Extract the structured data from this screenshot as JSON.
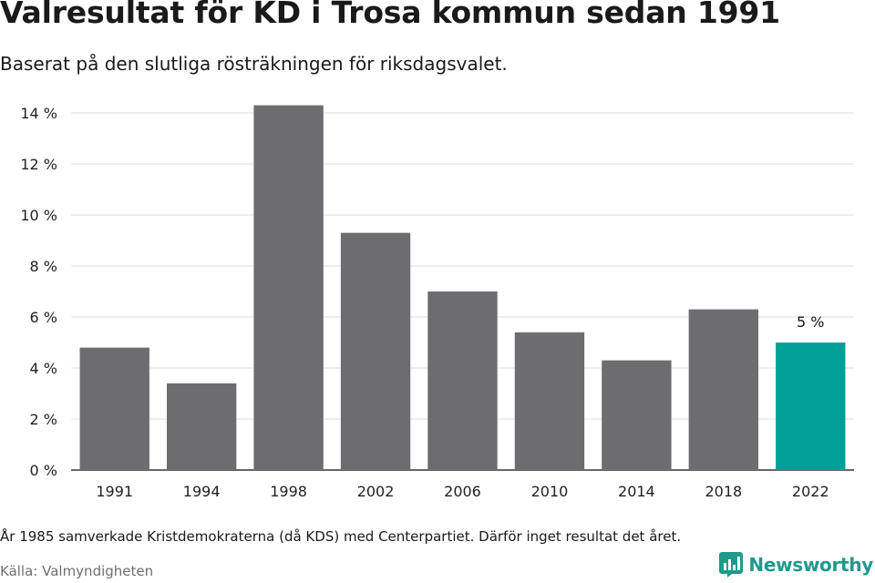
{
  "title": "Valresultat för KD i Trosa kommun sedan 1991",
  "subtitle": "Baserat på den slutliga rösträkningen för riksdagsvalet.",
  "note": "År 1985 samverkade Kristdemokraterna (då KDS) med Centerpartiet. Därför inget resultat det året.",
  "source": "Källa: Valmyndigheten",
  "brand": {
    "name": "Newsworthy",
    "icon": "newsworthy-logo-icon"
  },
  "colors": {
    "bar": "#6d6c71",
    "highlight": "#00a096",
    "grid": "#dddddd",
    "axis": "#333333"
  },
  "chart_data": {
    "type": "bar",
    "categories": [
      "1991",
      "1994",
      "1998",
      "2002",
      "2006",
      "2010",
      "2014",
      "2018",
      "2022"
    ],
    "values": [
      4.8,
      3.4,
      14.3,
      9.3,
      7.0,
      5.4,
      4.3,
      6.3,
      5.0
    ],
    "ylim": [
      0,
      14
    ],
    "yticks": [
      0,
      2,
      4,
      6,
      8,
      10,
      12,
      14
    ],
    "ytick_suffix": " %",
    "highlight_index": 8,
    "data_labels": {
      "8": "5 %"
    },
    "grid": true
  }
}
